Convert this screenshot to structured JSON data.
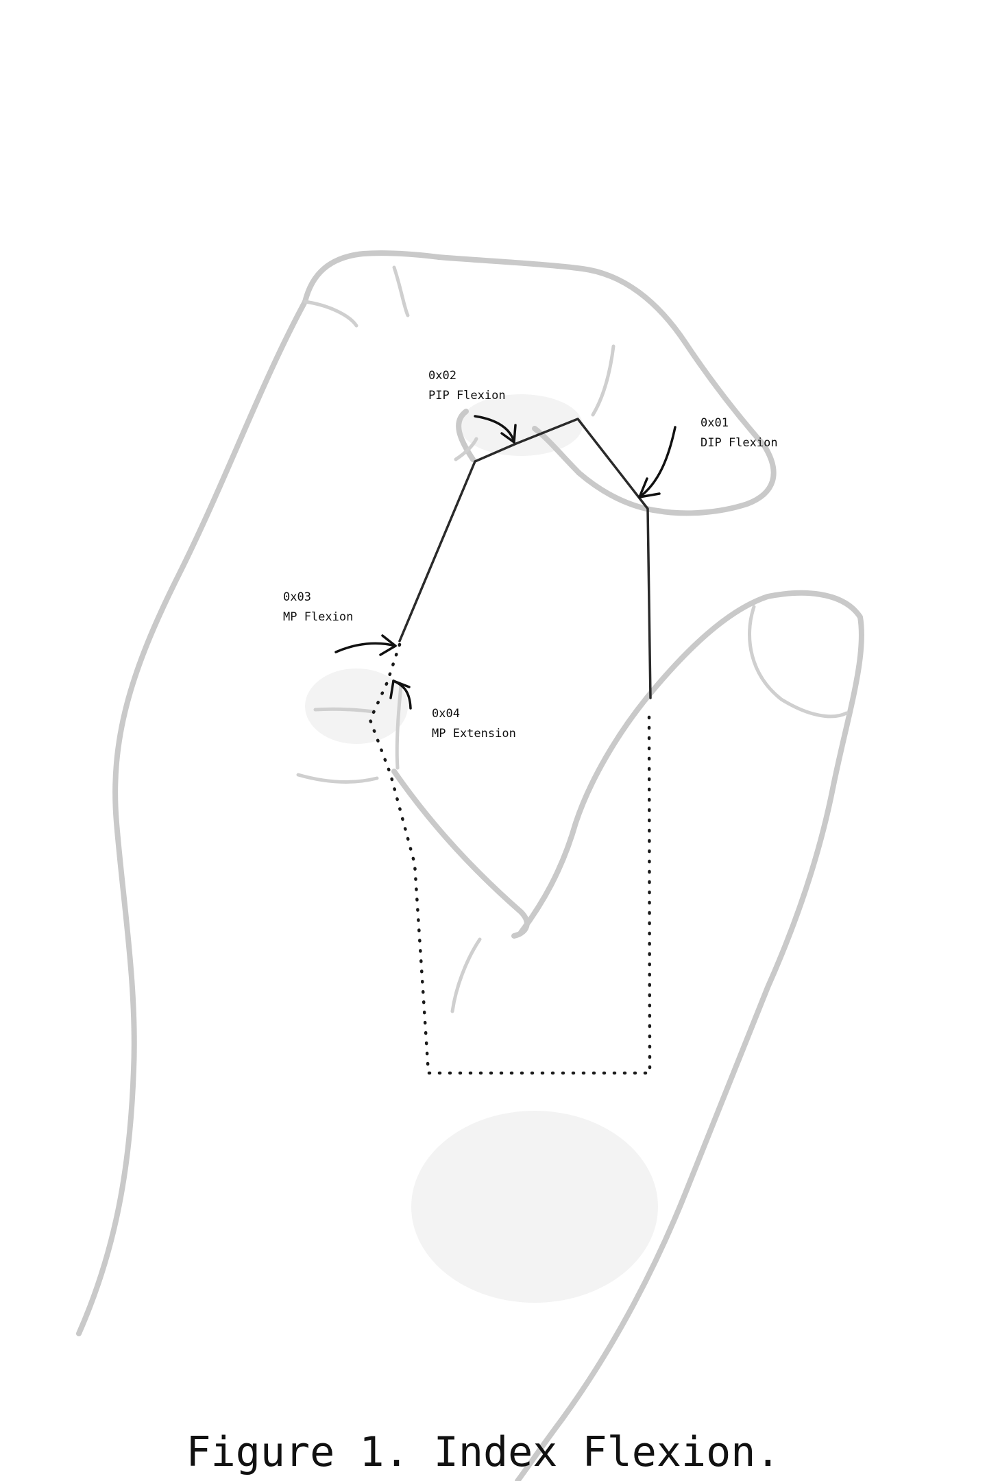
{
  "caption": "Figure 1. Index Flexion.",
  "annotations": [
    {
      "id": "dip",
      "code": "0x01",
      "name": "DIP Flexion"
    },
    {
      "id": "pip",
      "code": "0x02",
      "name": "PIP Flexion"
    },
    {
      "id": "mp_flexion",
      "code": "0x03",
      "name": "MP Flexion"
    },
    {
      "id": "mp_extension",
      "code": "0x04",
      "name": "MP Extension"
    }
  ]
}
